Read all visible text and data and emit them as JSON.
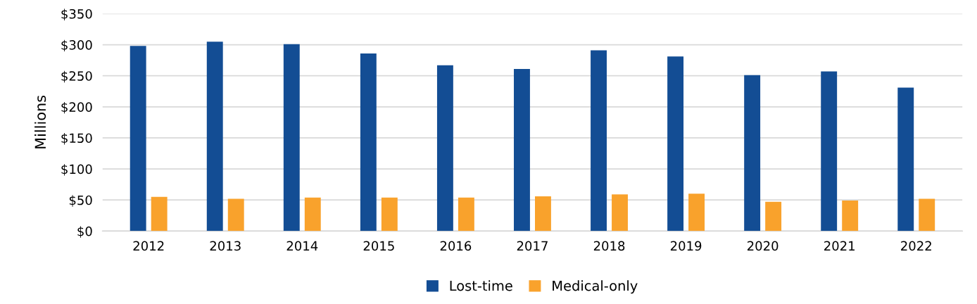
{
  "chart_data": {
    "type": "bar",
    "ylabel": "Millions",
    "categories": [
      "2012",
      "2013",
      "2014",
      "2015",
      "2016",
      "2017",
      "2018",
      "2019",
      "2020",
      "2021",
      "2022"
    ],
    "series": [
      {
        "name": "Lost-time",
        "color": "#134d94",
        "values": [
          298,
          305,
          301,
          286,
          267,
          261,
          291,
          281,
          251,
          257,
          231
        ]
      },
      {
        "name": "Medical-only",
        "color": "#f9a22c",
        "values": [
          55,
          52,
          54,
          54,
          54,
          56,
          59,
          60,
          47,
          49,
          52
        ]
      }
    ],
    "ylim": [
      0,
      350
    ],
    "yticks": [
      {
        "value": 0,
        "label": "$0"
      },
      {
        "value": 50,
        "label": "$50"
      },
      {
        "value": 100,
        "label": "$100"
      },
      {
        "value": 150,
        "label": "$150"
      },
      {
        "value": 200,
        "label": "$200"
      },
      {
        "value": 250,
        "label": "$250"
      },
      {
        "value": 300,
        "label": "$300"
      },
      {
        "value": 350,
        "label": "$350"
      }
    ],
    "grid": "y",
    "legend": "bottom"
  }
}
